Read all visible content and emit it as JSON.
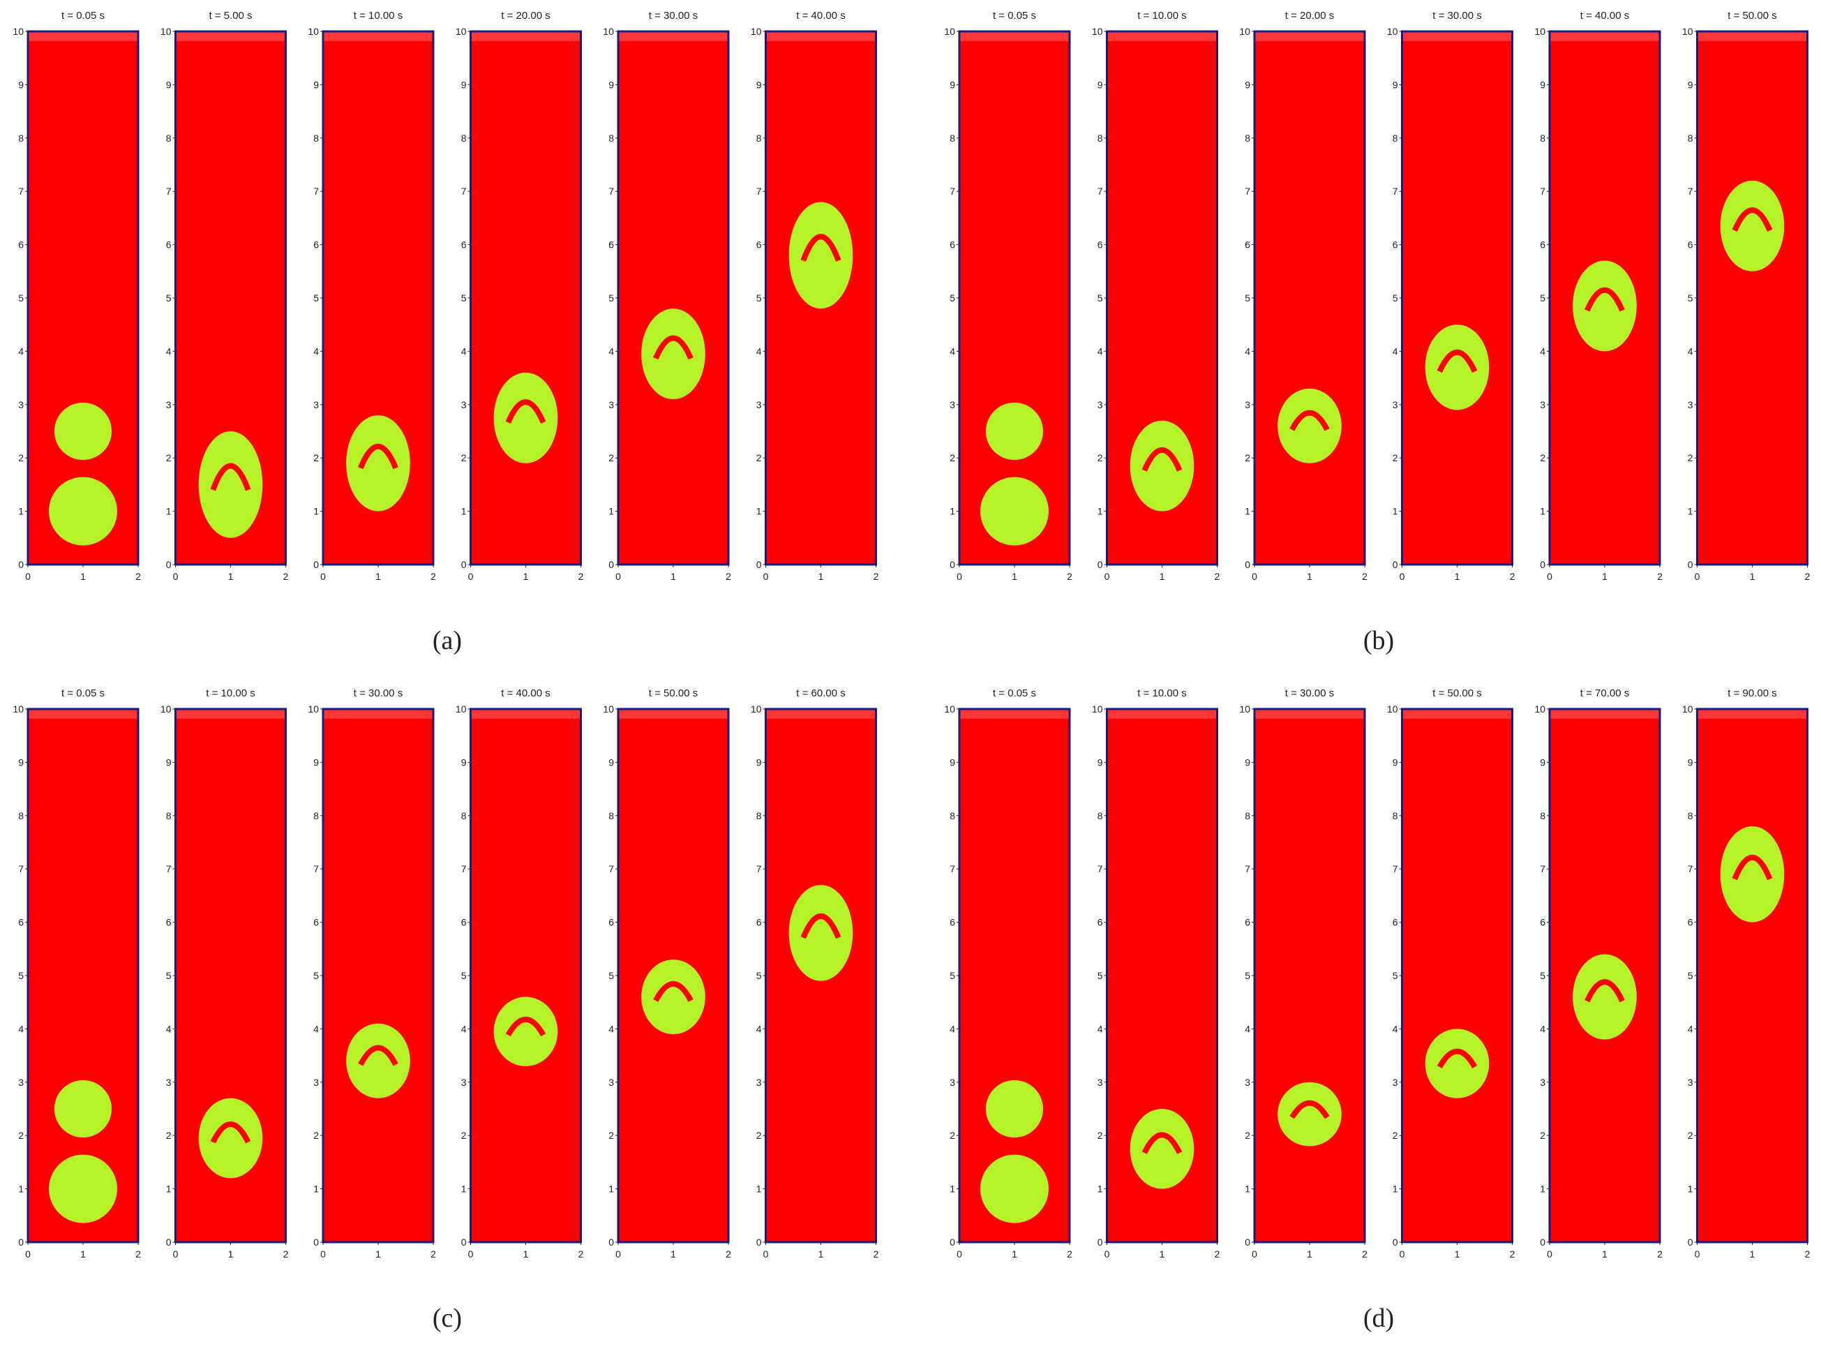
{
  "figure": {
    "xticks": [
      0,
      1,
      2
    ],
    "yticks": [
      0,
      1,
      2,
      3,
      4,
      5,
      6,
      7,
      8,
      9,
      10
    ],
    "panels": [
      {
        "label": "(a)",
        "frames": [
          {
            "title": "t = 0.05 s"
          },
          {
            "title": "t = 5.00 s"
          },
          {
            "title": "t = 10.00 s"
          },
          {
            "title": "t = 20.00 s"
          },
          {
            "title": "t = 30.00 s"
          },
          {
            "title": "t = 40.00 s"
          }
        ]
      },
      {
        "label": "(b)",
        "frames": [
          {
            "title": "t = 0.05 s"
          },
          {
            "title": "t = 10.00 s"
          },
          {
            "title": "t = 20.00 s"
          },
          {
            "title": "t = 30.00 s"
          },
          {
            "title": "t = 40.00 s"
          },
          {
            "title": "t = 50.00 s"
          }
        ]
      },
      {
        "label": "(c)",
        "frames": [
          {
            "title": "t = 0.05 s"
          },
          {
            "title": "t = 10.00 s"
          },
          {
            "title": "t = 30.00 s"
          },
          {
            "title": "t = 40.00 s"
          },
          {
            "title": "t = 50.00 s"
          },
          {
            "title": "t = 60.00 s"
          }
        ]
      },
      {
        "label": "(d)",
        "frames": [
          {
            "title": "t = 0.05 s"
          },
          {
            "title": "t = 10.00 s"
          },
          {
            "title": "t = 30.00 s"
          },
          {
            "title": "t = 50.00 s"
          },
          {
            "title": "t = 70.00 s"
          },
          {
            "title": "t = 90.00 s"
          }
        ]
      }
    ]
  }
}
